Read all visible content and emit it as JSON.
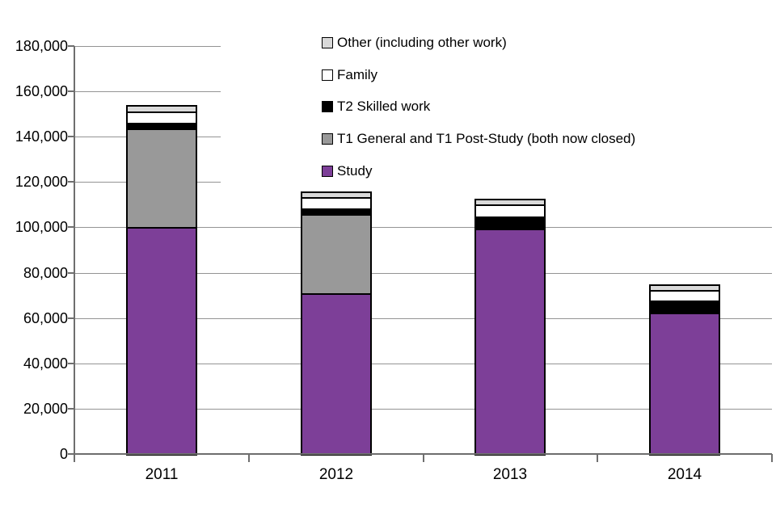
{
  "chart_data": {
    "type": "bar",
    "stacked": true,
    "title": "",
    "xlabel": "",
    "ylabel": "",
    "grid": true,
    "legend_position": "top-right",
    "categories": [
      "2011",
      "2012",
      "2013",
      "2014"
    ],
    "series": [
      {
        "name": "Study",
        "color": "#7d3f98",
        "values": [
          100000,
          71000,
          99500,
          62500
        ]
      },
      {
        "name": "T1 General and T1 Post-Study (both now closed)",
        "color": "#999999",
        "values": [
          43500,
          35000,
          0,
          0
        ]
      },
      {
        "name": "T2 Skilled work",
        "color": "#000000",
        "values": [
          2500,
          2500,
          5000,
          5500
        ]
      },
      {
        "name": "Family",
        "color": "#ffffff",
        "values": [
          5000,
          5000,
          5500,
          4500
        ]
      },
      {
        "name": "Other (including other work)",
        "color": "#d9d9d9",
        "values": [
          3000,
          2500,
          2500,
          2500
        ]
      }
    ],
    "totals": [
      154000,
      116000,
      112500,
      75000
    ],
    "y_axis": {
      "min": 0,
      "max": 180000,
      "tick_interval": 20000,
      "tick_labels": [
        "0",
        "20,000",
        "40,000",
        "60,000",
        "80,000",
        "100,000",
        "120,000",
        "140,000",
        "160,000",
        "180,000"
      ]
    },
    "legend_top_to_bottom": [
      "Other (including other work)",
      "Family",
      "T2 Skilled work",
      "T1 General and T1 Post-Study (both now closed)",
      "Study"
    ]
  },
  "colors": {
    "study": "#7d3f98",
    "t1_general_post_study": "#999999",
    "t2_skilled_work": "#000000",
    "family": "#ffffff",
    "other": "#d9d9d9",
    "gridline": "#949494",
    "axis": "#6e6e6e",
    "bar_border": "#000000",
    "background": "#ffffff",
    "text": "#000000"
  }
}
